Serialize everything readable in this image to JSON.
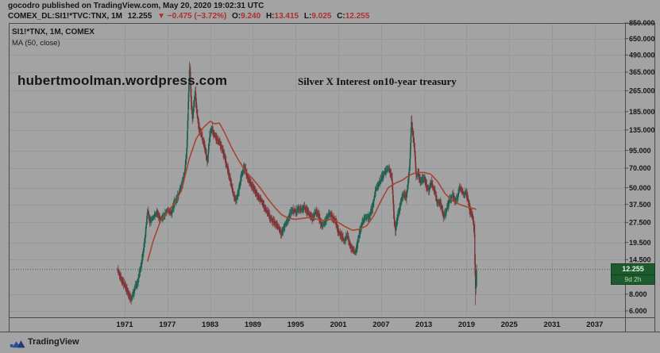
{
  "header": {
    "byline_user": "gocodro",
    "byline_rest": " published on TradingView.com, May 20, 2020 19:02:31 UTC",
    "symbol": "COMEX_DL:SI1!*TVC:TNX, 1M",
    "last": "12.255",
    "change": "▼ −0.475 (−3.72%)",
    "o_label": "O:",
    "o": "9.240",
    "h_label": "H:",
    "h": "13.415",
    "l_label": "L:",
    "l": "9.025",
    "c_label": "C:",
    "c": "12.255"
  },
  "legend": {
    "line1": "SI1!*TNX, 1M, COMEX",
    "line2": "MA (50, close)"
  },
  "watermark": "hubertmoolman.wordpress.com",
  "badge": {
    "price": "12.255",
    "countdown": "9d 2h"
  },
  "footer": {
    "brand": "TradingView"
  },
  "colors": {
    "background": "#a3a3a3",
    "grid": "#9299a1",
    "frame": "#4b4b4b",
    "candle_up": "#1b5f4d",
    "candle_down": "#7c3131",
    "ma_line": "#a84531",
    "current_price_line": "#2d7048",
    "badge_bg": "#1d5a2e",
    "quote_red": "#ae3030",
    "text_dark": "#15151c",
    "logo_blue": "#2b4f97"
  },
  "chart_data": {
    "type": "candlestick",
    "symbol": "SI1!*TNX",
    "interval": "1M",
    "exchange": "COMEX",
    "annotation": "Silver X Interest on10-year treasury",
    "x_axis": {
      "tick_years": [
        1971,
        1977,
        1983,
        1989,
        1995,
        2001,
        2007,
        2013,
        2019,
        2025,
        2031,
        2037
      ],
      "data_start": 1970.0,
      "data_end": 2020.417
    },
    "y_axis": {
      "scale": "log",
      "tick_values": [
        850,
        650,
        490,
        365,
        265,
        185,
        135,
        95,
        70,
        50,
        37.5,
        27.5,
        19.5,
        14.5,
        8,
        6
      ]
    },
    "current_price": 12.255,
    "last_bar": {
      "open": 9.24,
      "high": 13.415,
      "low": 9.025,
      "close": 12.255
    },
    "series": [
      {
        "name": "SI1!*TNX monthly close (keypoints: [year, value])",
        "type": "candlestick",
        "close_keypoints": [
          [
            1970.0,
            12
          ],
          [
            1970.4,
            10.8
          ],
          [
            1970.8,
            9.6
          ],
          [
            1971.2,
            8.8
          ],
          [
            1971.6,
            7.8
          ],
          [
            1971.9,
            7.3
          ],
          [
            1972.3,
            8.6
          ],
          [
            1972.8,
            9.9
          ],
          [
            1973.3,
            13
          ],
          [
            1973.8,
            20
          ],
          [
            1974.2,
            34
          ],
          [
            1974.5,
            28
          ],
          [
            1975.0,
            30
          ],
          [
            1975.5,
            33
          ],
          [
            1976.0,
            29
          ],
          [
            1976.5,
            31
          ],
          [
            1977.0,
            34
          ],
          [
            1977.5,
            32
          ],
          [
            1978.0,
            39
          ],
          [
            1978.5,
            44
          ],
          [
            1979.0,
            52
          ],
          [
            1979.4,
            65
          ],
          [
            1979.7,
            95
          ],
          [
            1979.95,
            250
          ],
          [
            1980.12,
            430
          ],
          [
            1980.3,
            230
          ],
          [
            1980.5,
            165
          ],
          [
            1980.7,
            210
          ],
          [
            1980.9,
            265
          ],
          [
            1981.1,
            185
          ],
          [
            1981.4,
            142
          ],
          [
            1981.7,
            125
          ],
          [
            1982.0,
            110
          ],
          [
            1982.3,
            95
          ],
          [
            1982.6,
            78
          ],
          [
            1982.9,
            118
          ],
          [
            1983.2,
            140
          ],
          [
            1983.5,
            126
          ],
          [
            1983.8,
            118
          ],
          [
            1984.2,
            110
          ],
          [
            1984.6,
            100
          ],
          [
            1985.0,
            85
          ],
          [
            1985.4,
            70
          ],
          [
            1985.8,
            58
          ],
          [
            1986.2,
            45
          ],
          [
            1986.6,
            40
          ],
          [
            1987.0,
            48
          ],
          [
            1987.4,
            62
          ],
          [
            1987.8,
            72
          ],
          [
            1988.2,
            60
          ],
          [
            1988.6,
            55
          ],
          [
            1989.0,
            50
          ],
          [
            1989.4,
            46
          ],
          [
            1989.8,
            42
          ],
          [
            1990.2,
            40
          ],
          [
            1990.6,
            35
          ],
          [
            1991.0,
            33
          ],
          [
            1991.4,
            30
          ],
          [
            1991.8,
            28
          ],
          [
            1992.2,
            27
          ],
          [
            1992.6,
            25
          ],
          [
            1993.0,
            22.5
          ],
          [
            1993.4,
            26
          ],
          [
            1993.8,
            28
          ],
          [
            1994.2,
            32
          ],
          [
            1994.6,
            34
          ],
          [
            1995.0,
            33
          ],
          [
            1995.4,
            35
          ],
          [
            1995.8,
            34
          ],
          [
            1996.2,
            36
          ],
          [
            1996.6,
            33
          ],
          [
            1997.0,
            31
          ],
          [
            1997.4,
            29
          ],
          [
            1997.8,
            33
          ],
          [
            1998.2,
            31
          ],
          [
            1998.6,
            26
          ],
          [
            1999.0,
            27
          ],
          [
            1999.4,
            30
          ],
          [
            1999.8,
            32
          ],
          [
            2000.2,
            30
          ],
          [
            2000.6,
            28
          ],
          [
            2001.0,
            23
          ],
          [
            2001.4,
            22
          ],
          [
            2001.8,
            20
          ],
          [
            2002.2,
            22
          ],
          [
            2002.6,
            19
          ],
          [
            2003.0,
            17
          ],
          [
            2003.4,
            16.2
          ],
          [
            2003.8,
            21
          ],
          [
            2004.2,
            26
          ],
          [
            2004.6,
            29
          ],
          [
            2005.0,
            30
          ],
          [
            2005.4,
            31
          ],
          [
            2005.8,
            36
          ],
          [
            2006.2,
            48
          ],
          [
            2006.6,
            52
          ],
          [
            2007.0,
            58
          ],
          [
            2007.4,
            64
          ],
          [
            2007.8,
            68
          ],
          [
            2008.1,
            70
          ],
          [
            2008.5,
            58
          ],
          [
            2008.8,
            30
          ],
          [
            2009.0,
            24
          ],
          [
            2009.3,
            30
          ],
          [
            2009.6,
            35
          ],
          [
            2009.9,
            42
          ],
          [
            2010.2,
            45
          ],
          [
            2010.5,
            42
          ],
          [
            2010.8,
            55
          ],
          [
            2011.0,
            75
          ],
          [
            2011.25,
            155
          ],
          [
            2011.45,
            125
          ],
          [
            2011.7,
            95
          ],
          [
            2011.9,
            62
          ],
          [
            2012.2,
            64
          ],
          [
            2012.5,
            55
          ],
          [
            2012.8,
            58
          ],
          [
            2013.1,
            60
          ],
          [
            2013.4,
            50
          ],
          [
            2013.7,
            48
          ],
          [
            2014.0,
            55
          ],
          [
            2014.3,
            50
          ],
          [
            2014.6,
            45
          ],
          [
            2014.9,
            38
          ],
          [
            2015.2,
            40
          ],
          [
            2015.5,
            35
          ],
          [
            2015.8,
            30
          ],
          [
            2016.1,
            33
          ],
          [
            2016.4,
            38
          ],
          [
            2016.8,
            42
          ],
          [
            2017.1,
            44
          ],
          [
            2017.4,
            40
          ],
          [
            2017.7,
            42
          ],
          [
            2018.0,
            50
          ],
          [
            2018.3,
            48
          ],
          [
            2018.6,
            44
          ],
          [
            2018.9,
            46
          ],
          [
            2019.2,
            40
          ],
          [
            2019.5,
            33
          ],
          [
            2019.8,
            31
          ],
          [
            2020.0,
            26
          ],
          [
            2020.13,
            21
          ],
          [
            2020.21,
            7.8
          ],
          [
            2020.28,
            9.5
          ],
          [
            2020.37,
            12.255
          ]
        ]
      },
      {
        "name": "MA (50, close)",
        "type": "line",
        "keypoints": [
          [
            1974.2,
            14
          ],
          [
            1975,
            20
          ],
          [
            1976,
            28
          ],
          [
            1977,
            33
          ],
          [
            1978,
            38
          ],
          [
            1979,
            48
          ],
          [
            1980,
            80
          ],
          [
            1981,
            115
          ],
          [
            1982,
            140
          ],
          [
            1983,
            157
          ],
          [
            1983.6,
            150
          ],
          [
            1984.3,
            152
          ],
          [
            1985,
            130
          ],
          [
            1986,
            100
          ],
          [
            1987,
            80
          ],
          [
            1988,
            66
          ],
          [
            1989,
            58
          ],
          [
            1990,
            50
          ],
          [
            1991,
            42
          ],
          [
            1992,
            36
          ],
          [
            1993,
            31.5
          ],
          [
            1994,
            29.5
          ],
          [
            1995,
            29
          ],
          [
            1996,
            29.5
          ],
          [
            1997,
            30
          ],
          [
            1998,
            29
          ],
          [
            1999,
            28.5
          ],
          [
            2000,
            29
          ],
          [
            2001,
            27.5
          ],
          [
            2002,
            25.5
          ],
          [
            2003,
            24
          ],
          [
            2004,
            24.5
          ],
          [
            2005,
            26
          ],
          [
            2006,
            31
          ],
          [
            2007,
            40
          ],
          [
            2008,
            50
          ],
          [
            2009,
            54
          ],
          [
            2010,
            57
          ],
          [
            2011,
            62
          ],
          [
            2012,
            65
          ],
          [
            2013,
            65
          ],
          [
            2014,
            63
          ],
          [
            2015,
            55
          ],
          [
            2016,
            45
          ],
          [
            2017,
            40
          ],
          [
            2018,
            37.5
          ],
          [
            2019,
            36
          ],
          [
            2020.37,
            34.5
          ]
        ]
      }
    ]
  }
}
